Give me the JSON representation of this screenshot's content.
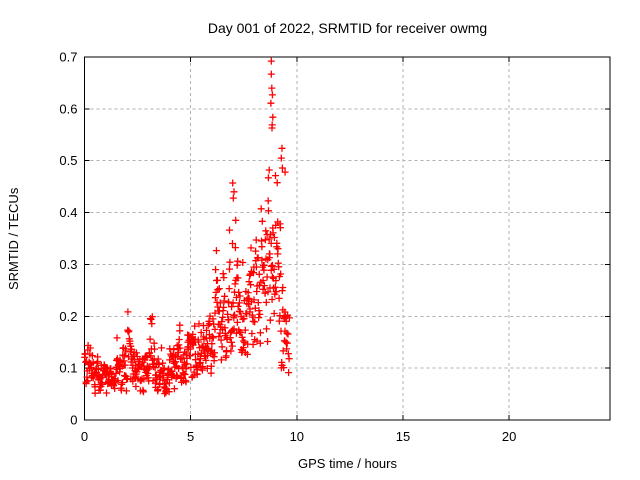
{
  "figure": {
    "background": "#ffffff",
    "text_color": "#000000"
  },
  "chart_data": {
    "type": "scatter",
    "title": "Day 001 of 2022, SRMTID for receiver owmg",
    "xlabel": "GPS time / hours",
    "ylabel": "SRMTID / TECUs",
    "xlim": [
      0,
      24.75
    ],
    "ylim": [
      0,
      0.7
    ],
    "xticks": [
      0,
      5,
      10,
      15,
      20
    ],
    "xtick_labels": [
      "0",
      "5",
      "10",
      "15",
      "20"
    ],
    "yticks": [
      0,
      0.1,
      0.2,
      0.3,
      0.4,
      0.5,
      0.6,
      0.7
    ],
    "ytick_labels": [
      "0",
      "0.1",
      "0.2",
      "0.3",
      "0.4",
      "0.5",
      "0.6",
      "0.7"
    ],
    "grid": true,
    "grid_color": "#b0b0b0",
    "grid_dash": [
      3,
      3
    ],
    "axis_color": "#000000",
    "tick_length": 5,
    "legend": null,
    "marker": {
      "shape": "plus",
      "color": "#ff0000",
      "size": 7,
      "stroke_width": 1.3
    },
    "series": [
      {
        "name": "SRMTID",
        "x_data_range": [
          0,
          9.65
        ]
      }
    ],
    "seed": 42,
    "envelope_bins": [
      [
        0.0,
        0.25,
        16,
        0.115,
        0.028,
        0.07,
        0.17
      ],
      [
        0.25,
        0.5,
        17,
        0.095,
        0.02,
        0.055,
        0.14
      ],
      [
        0.5,
        0.75,
        17,
        0.085,
        0.018,
        0.05,
        0.13
      ],
      [
        0.75,
        1.0,
        17,
        0.08,
        0.018,
        0.048,
        0.125
      ],
      [
        1.0,
        1.25,
        17,
        0.09,
        0.022,
        0.05,
        0.155
      ],
      [
        1.25,
        1.5,
        17,
        0.08,
        0.02,
        0.045,
        0.13
      ],
      [
        1.5,
        1.75,
        17,
        0.09,
        0.025,
        0.05,
        0.16
      ],
      [
        1.75,
        2.0,
        17,
        0.1,
        0.03,
        0.055,
        0.19
      ],
      [
        2.0,
        2.25,
        17,
        0.13,
        0.04,
        0.07,
        0.23
      ],
      [
        2.25,
        2.5,
        17,
        0.105,
        0.03,
        0.06,
        0.18
      ],
      [
        2.5,
        2.75,
        17,
        0.085,
        0.02,
        0.05,
        0.13
      ],
      [
        2.75,
        3.0,
        17,
        0.09,
        0.025,
        0.05,
        0.15
      ],
      [
        3.0,
        3.25,
        17,
        0.11,
        0.032,
        0.06,
        0.2
      ],
      [
        3.25,
        3.5,
        17,
        0.1,
        0.03,
        0.055,
        0.19
      ],
      [
        3.5,
        3.75,
        17,
        0.09,
        0.022,
        0.05,
        0.15
      ],
      [
        3.75,
        4.0,
        17,
        0.085,
        0.02,
        0.05,
        0.14
      ],
      [
        4.0,
        4.25,
        17,
        0.1,
        0.028,
        0.06,
        0.185
      ],
      [
        4.25,
        4.5,
        17,
        0.115,
        0.035,
        0.065,
        0.225
      ],
      [
        4.5,
        4.75,
        17,
        0.1,
        0.025,
        0.06,
        0.16
      ],
      [
        4.75,
        5.0,
        17,
        0.12,
        0.035,
        0.07,
        0.24
      ],
      [
        5.0,
        5.25,
        17,
        0.13,
        0.03,
        0.08,
        0.22
      ],
      [
        5.25,
        5.5,
        17,
        0.13,
        0.03,
        0.08,
        0.21
      ],
      [
        5.5,
        5.75,
        17,
        0.14,
        0.03,
        0.09,
        0.22
      ],
      [
        5.75,
        6.0,
        17,
        0.15,
        0.035,
        0.09,
        0.25
      ],
      [
        6.0,
        6.25,
        17,
        0.17,
        0.05,
        0.1,
        0.33
      ],
      [
        6.25,
        6.5,
        17,
        0.18,
        0.04,
        0.11,
        0.28
      ],
      [
        6.5,
        6.75,
        17,
        0.19,
        0.05,
        0.12,
        0.32
      ],
      [
        6.75,
        7.0,
        18,
        0.22,
        0.07,
        0.13,
        0.41
      ],
      [
        7.0,
        7.25,
        18,
        0.24,
        0.08,
        0.14,
        0.46
      ],
      [
        7.25,
        7.5,
        17,
        0.21,
        0.06,
        0.13,
        0.35
      ],
      [
        7.5,
        7.75,
        17,
        0.2,
        0.05,
        0.12,
        0.33
      ],
      [
        7.75,
        8.0,
        17,
        0.22,
        0.06,
        0.13,
        0.37
      ],
      [
        8.0,
        8.25,
        17,
        0.23,
        0.07,
        0.12,
        0.4
      ],
      [
        8.25,
        8.5,
        17,
        0.25,
        0.08,
        0.14,
        0.43
      ],
      [
        8.5,
        8.75,
        18,
        0.28,
        0.09,
        0.15,
        0.48
      ],
      [
        8.75,
        9.0,
        18,
        0.32,
        0.12,
        0.15,
        0.6
      ],
      [
        9.0,
        9.25,
        18,
        0.27,
        0.1,
        0.12,
        0.5
      ],
      [
        9.25,
        9.5,
        17,
        0.18,
        0.07,
        0.1,
        0.48
      ],
      [
        9.5,
        9.65,
        10,
        0.14,
        0.04,
        0.09,
        0.25
      ]
    ],
    "outlier_points": [
      [
        8.8,
        0.692
      ],
      [
        8.8,
        0.667
      ],
      [
        8.82,
        0.64
      ],
      [
        8.85,
        0.627
      ],
      [
        8.78,
        0.611
      ],
      [
        8.87,
        0.584
      ],
      [
        8.84,
        0.569
      ],
      [
        8.83,
        0.563
      ],
      [
        9.3,
        0.524
      ],
      [
        9.27,
        0.505
      ],
      [
        9.32,
        0.486
      ],
      [
        8.7,
        0.482
      ],
      [
        9.45,
        0.478
      ],
      [
        8.66,
        0.467
      ],
      [
        6.98,
        0.457
      ],
      [
        7.04,
        0.44
      ],
      [
        7.01,
        0.428
      ]
    ]
  }
}
